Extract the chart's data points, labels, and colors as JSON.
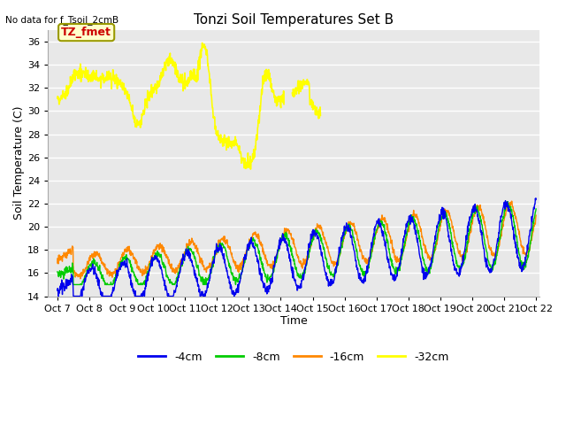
{
  "title": "Tonzi Soil Temperatures Set B",
  "no_data_text": "No data for f_Tsoil_2cmB",
  "xlabel": "Time",
  "ylabel": "Soil Temperature (C)",
  "ylim": [
    14,
    37
  ],
  "yticks": [
    14,
    16,
    18,
    20,
    22,
    24,
    26,
    28,
    30,
    32,
    34,
    36
  ],
  "n_days": 15,
  "xtick_labels": [
    "Oct 7",
    "Oct 8",
    " Oct 9",
    "Oct 10",
    "Oct 11",
    "Oct 12",
    "Oct 13",
    "Oct 14",
    "Oct 15",
    "Oct 16",
    "Oct 17",
    "Oct 18",
    "Oct 19",
    "Oct 20",
    "Oct 21",
    "Oct 22"
  ],
  "colors": {
    "4cm": "#0000ee",
    "8cm": "#00cc00",
    "16cm": "#ff8800",
    "32cm": "#ffff00",
    "box_bg": "#ffffcc",
    "box_border": "#999900",
    "box_text": "#cc0000",
    "plot_bg": "#e8e8e8",
    "fig_bg": "#ffffff",
    "grid": "#ffffff"
  },
  "legend_labels": [
    "-4cm",
    "-8cm",
    "-16cm",
    "-32cm"
  ]
}
